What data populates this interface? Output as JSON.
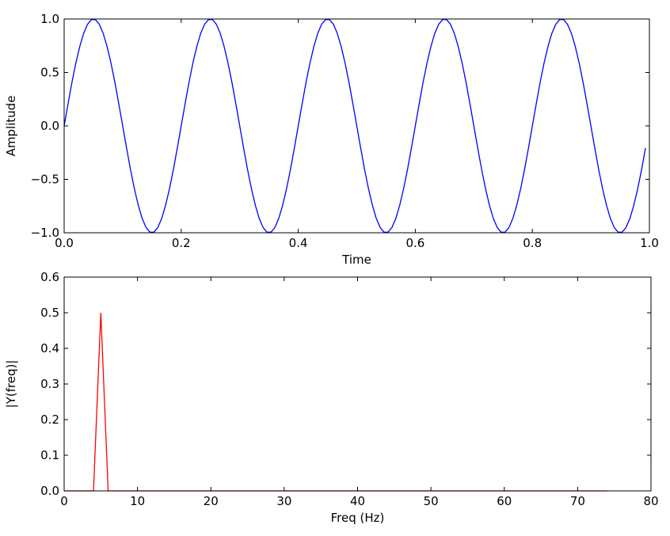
{
  "chart_data": [
    {
      "type": "line",
      "x_label": "Time",
      "y_label": "Amplitude",
      "xlim": [
        0,
        1
      ],
      "ylim": [
        -1,
        1
      ],
      "xticks": [
        {
          "value": 0,
          "label": "0.0"
        },
        0.2,
        0.4,
        0.6,
        0.8,
        {
          "value": 1,
          "label": "1.0"
        }
      ],
      "yticks": [
        {
          "value": -1,
          "label": "−1.0"
        },
        {
          "value": -0.5,
          "label": "−0.5"
        },
        {
          "value": 0,
          "label": "0.0"
        },
        0.5,
        {
          "value": 1,
          "label": "1.0"
        }
      ],
      "x": [
        0,
        0.0067,
        0.0133,
        0.02,
        0.0267,
        0.0333,
        0.04,
        0.0467,
        0.0533,
        0.06,
        0.0667,
        0.0733,
        0.08,
        0.0867,
        0.0933,
        0.1,
        0.1067,
        0.1133,
        0.12,
        0.1267,
        0.1333,
        0.14,
        0.1467,
        0.1533,
        0.16,
        0.1667,
        0.1733,
        0.18,
        0.1867,
        0.1933,
        0.2,
        0.2067,
        0.2133,
        0.22,
        0.2267,
        0.2333,
        0.24,
        0.2467,
        0.2533,
        0.26,
        0.2667,
        0.2733,
        0.28,
        0.2867,
        0.2933,
        0.3,
        0.3067,
        0.3133,
        0.32,
        0.3267,
        0.3333,
        0.34,
        0.3467,
        0.3533,
        0.36,
        0.3667,
        0.3733,
        0.38,
        0.3867,
        0.3933,
        0.4,
        0.4067,
        0.4133,
        0.42,
        0.4267,
        0.4333,
        0.44,
        0.4467,
        0.4533,
        0.46,
        0.4667,
        0.4733,
        0.48,
        0.4867,
        0.4933,
        0.5,
        0.5067,
        0.5133,
        0.52,
        0.5267,
        0.5333,
        0.54,
        0.5467,
        0.5533,
        0.56,
        0.5667,
        0.5733,
        0.58,
        0.5867,
        0.5933,
        0.6,
        0.6067,
        0.6133,
        0.62,
        0.6267,
        0.6333,
        0.64,
        0.6467,
        0.6533,
        0.66,
        0.6667,
        0.6733,
        0.68,
        0.6867,
        0.6933,
        0.7,
        0.7067,
        0.7133,
        0.72,
        0.7267,
        0.7333,
        0.74,
        0.7467,
        0.7533,
        0.76,
        0.7667,
        0.7733,
        0.78,
        0.7867,
        0.7933,
        0.8,
        0.8067,
        0.8133,
        0.82,
        0.8267,
        0.8333,
        0.84,
        0.8467,
        0.8533,
        0.86,
        0.8667,
        0.8733,
        0.88,
        0.8867,
        0.8933,
        0.9,
        0.9067,
        0.9133,
        0.92,
        0.9267,
        0.9333,
        0.94,
        0.9467,
        0.9533,
        0.96,
        0.9667,
        0.9733,
        0.98,
        0.9867,
        0.9933
      ],
      "series": [
        {
          "color": "#0000ff",
          "values": [
            0,
            0.208,
            0.407,
            0.588,
            0.743,
            0.866,
            0.951,
            0.995,
            0.995,
            0.951,
            0.866,
            0.743,
            0.588,
            0.407,
            0.208,
            0,
            -0.208,
            -0.407,
            -0.588,
            -0.743,
            -0.866,
            -0.951,
            -0.995,
            -0.995,
            -0.951,
            -0.866,
            -0.743,
            -0.588,
            -0.407,
            -0.208,
            0,
            0.208,
            0.407,
            0.588,
            0.743,
            0.866,
            0.951,
            0.995,
            0.995,
            0.951,
            0.866,
            0.743,
            0.588,
            0.407,
            0.208,
            0,
            -0.208,
            -0.407,
            -0.588,
            -0.743,
            -0.866,
            -0.951,
            -0.995,
            -0.995,
            -0.951,
            -0.866,
            -0.743,
            -0.588,
            -0.407,
            -0.208,
            0,
            0.208,
            0.407,
            0.588,
            0.743,
            0.866,
            0.951,
            0.995,
            0.995,
            0.951,
            0.866,
            0.743,
            0.588,
            0.407,
            0.208,
            0,
            -0.208,
            -0.407,
            -0.588,
            -0.743,
            -0.866,
            -0.951,
            -0.995,
            -0.995,
            -0.951,
            -0.866,
            -0.743,
            -0.588,
            -0.407,
            -0.208,
            0,
            0.208,
            0.407,
            0.588,
            0.743,
            0.866,
            0.951,
            0.995,
            0.995,
            0.951,
            0.866,
            0.743,
            0.588,
            0.407,
            0.208,
            0,
            -0.208,
            -0.407,
            -0.588,
            -0.743,
            -0.866,
            -0.951,
            -0.995,
            -0.995,
            -0.951,
            -0.866,
            -0.743,
            -0.588,
            -0.407,
            -0.208,
            0,
            0.208,
            0.407,
            0.588,
            0.743,
            0.866,
            0.951,
            0.995,
            0.995,
            0.951,
            0.866,
            0.743,
            0.588,
            0.407,
            0.208,
            0,
            -0.208,
            -0.407,
            -0.588,
            -0.743,
            -0.866,
            -0.951,
            -0.995,
            -0.995,
            -0.951,
            -0.866,
            -0.743,
            -0.588,
            -0.407,
            -0.208
          ]
        }
      ]
    },
    {
      "type": "line",
      "x_label": "Freq (Hz)",
      "y_label": "|Y(freq)|",
      "xlim": [
        0,
        80
      ],
      "ylim": [
        0,
        0.6
      ],
      "xticks": [
        0,
        10,
        20,
        30,
        40,
        50,
        60,
        70,
        80
      ],
      "yticks": [
        {
          "value": 0,
          "label": "0.0"
        },
        0.1,
        0.2,
        0.3,
        0.4,
        0.5,
        0.6
      ],
      "x": [
        0,
        1,
        2,
        3,
        4,
        5,
        6,
        7,
        8,
        9,
        10,
        11,
        12,
        13,
        14,
        15,
        16,
        17,
        18,
        19,
        20,
        21,
        22,
        23,
        24,
        25,
        26,
        27,
        28,
        29,
        30,
        31,
        32,
        33,
        34,
        35,
        36,
        37,
        38,
        39,
        40,
        41,
        42,
        43,
        44,
        45,
        46,
        47,
        48,
        49,
        50,
        51,
        52,
        53,
        54,
        55,
        56,
        57,
        58,
        59,
        60,
        61,
        62,
        63,
        64,
        65,
        66,
        67,
        68,
        69,
        70,
        71,
        72,
        73,
        74
      ],
      "series": [
        {
          "color": "#ff0000",
          "values": [
            0,
            0,
            0,
            0,
            0,
            0.5,
            0,
            0,
            0,
            0,
            0,
            0,
            0,
            0,
            0,
            0,
            0,
            0,
            0,
            0,
            0,
            0,
            0,
            0,
            0,
            0,
            0,
            0,
            0,
            0,
            0,
            0,
            0,
            0,
            0,
            0,
            0,
            0,
            0,
            0,
            0,
            0,
            0,
            0,
            0,
            0,
            0,
            0,
            0,
            0,
            0,
            0,
            0,
            0,
            0,
            0,
            0,
            0,
            0,
            0,
            0,
            0,
            0,
            0,
            0,
            0,
            0,
            0,
            0,
            0,
            0,
            0,
            0,
            0,
            0
          ]
        }
      ]
    }
  ]
}
